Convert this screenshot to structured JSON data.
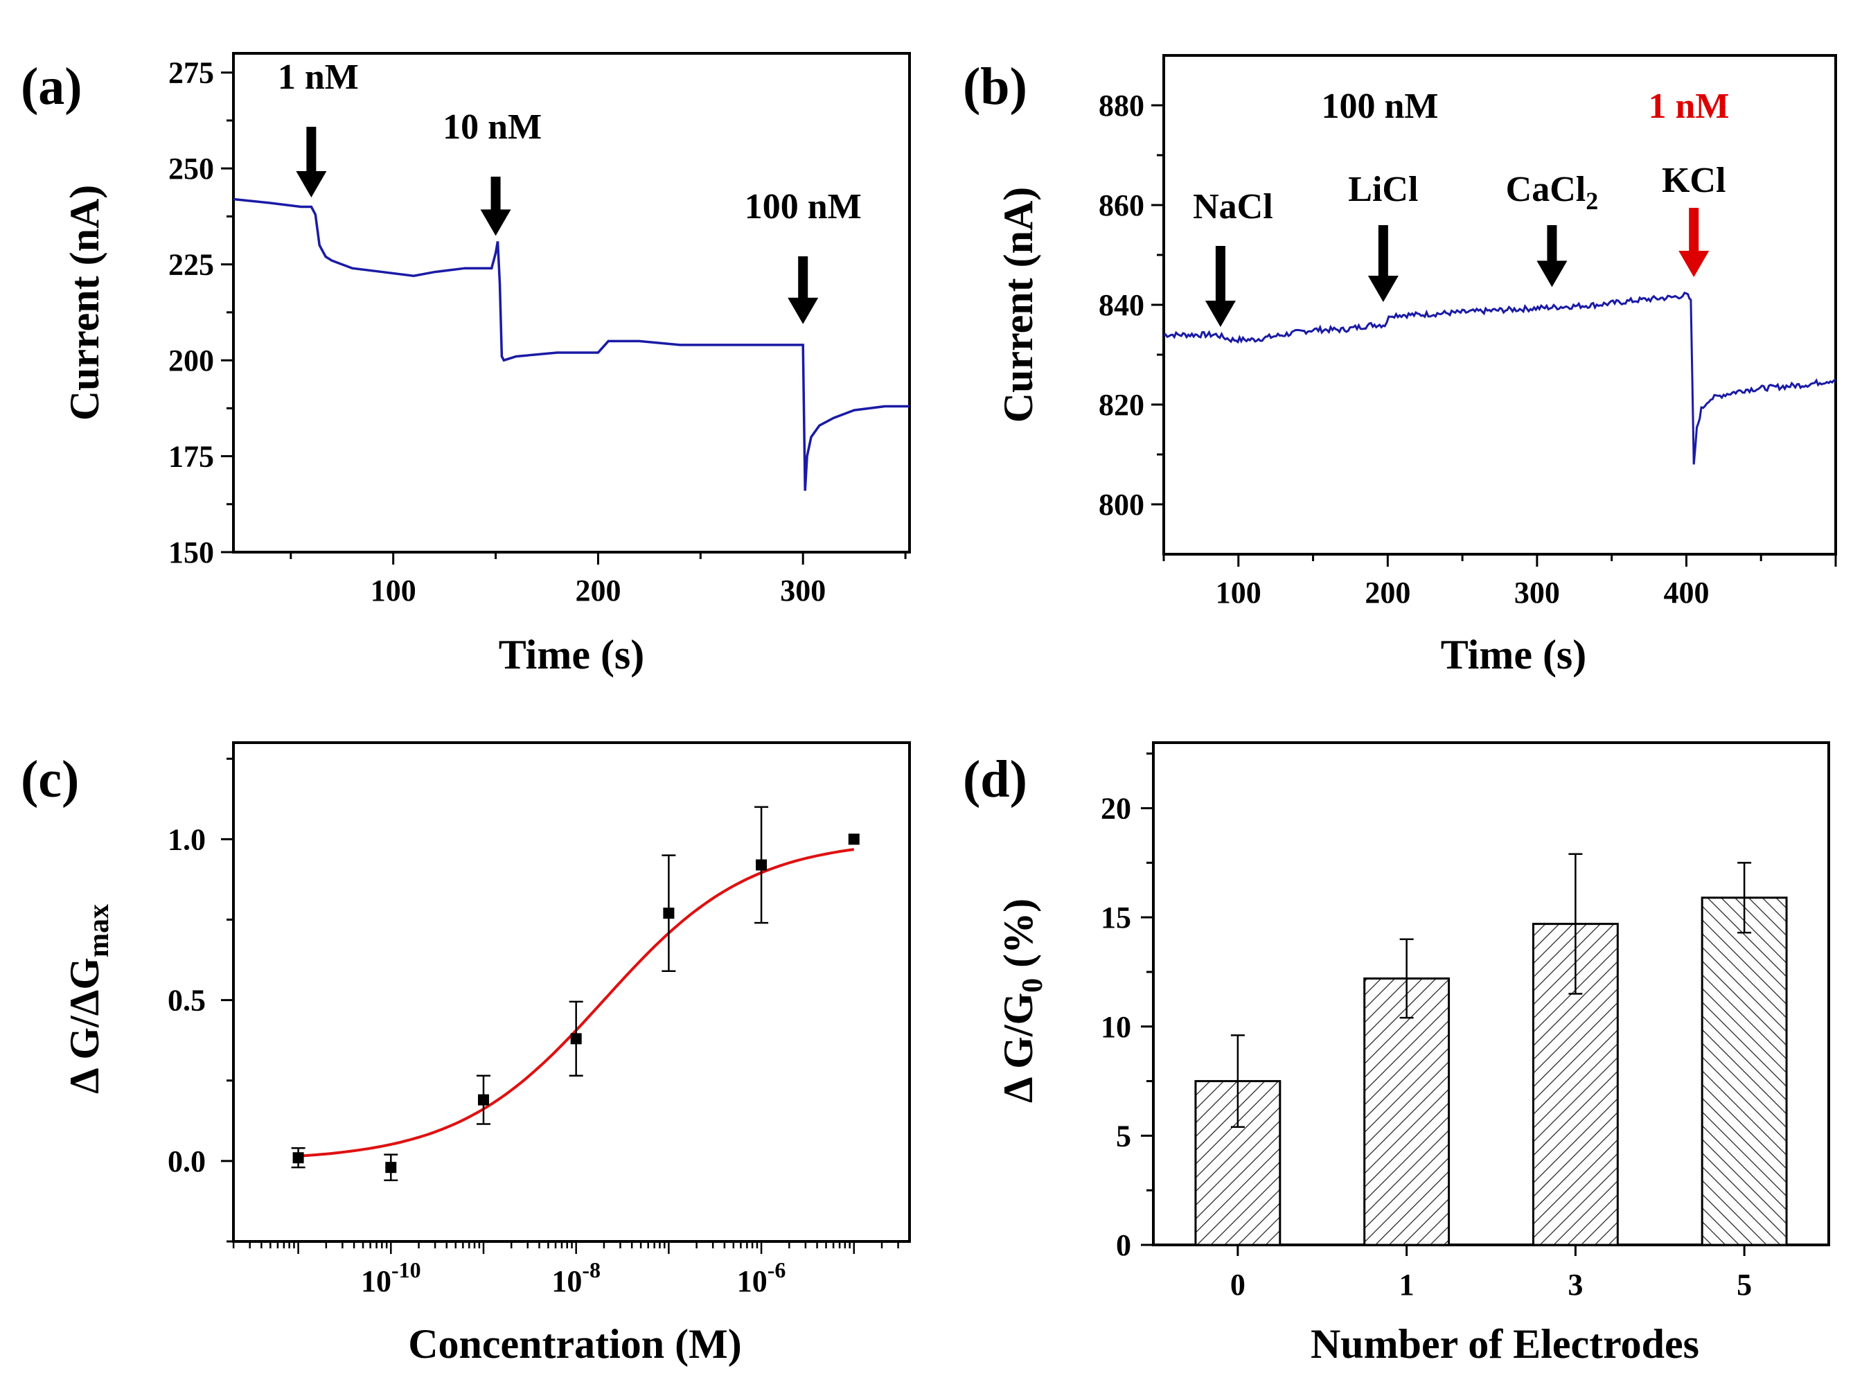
{
  "chart_data": [
    {
      "panel": "(a)",
      "type": "line",
      "xlabel": "Time (s)",
      "ylabel": "Current (nA)",
      "xlim": [
        22,
        352
      ],
      "ylim": [
        150,
        280
      ],
      "xticks": [
        100,
        200,
        300
      ],
      "yticks": [
        150,
        175,
        200,
        225,
        250,
        275
      ],
      "series": [
        {
          "name": "current",
          "color": "#1a1aa6",
          "x": [
            22,
            40,
            55,
            60,
            62,
            64,
            67,
            70,
            80,
            95,
            110,
            120,
            135,
            148,
            150,
            151,
            152,
            153,
            154,
            160,
            180,
            200,
            205,
            220,
            240,
            260,
            280,
            298,
            300,
            301,
            302,
            304,
            308,
            315,
            325,
            340,
            352
          ],
          "y": [
            242,
            241,
            240,
            240,
            238,
            230,
            227,
            226,
            224,
            223,
            222,
            223,
            224,
            224,
            228,
            231,
            220,
            201,
            200,
            201,
            202,
            202,
            205,
            205,
            204,
            204,
            204,
            204,
            204,
            166,
            175,
            180,
            183,
            185,
            187,
            188,
            188
          ]
        }
      ],
      "annotations": [
        {
          "text": "1 nM",
          "x": 60,
          "arrow_to_y": 241
        },
        {
          "text": "10 nM",
          "x": 150,
          "arrow_to_y": 231
        },
        {
          "text": "100 nM",
          "x": 300,
          "arrow_to_y": 208
        }
      ],
      "arrow_colors": [
        "#000000",
        "#000000",
        "#000000"
      ]
    },
    {
      "panel": "(b)",
      "type": "line",
      "xlabel": "Time (s)",
      "ylabel": "Current (nA)",
      "xlim": [
        50,
        500
      ],
      "ylim": [
        790,
        890
      ],
      "xticks": [
        100,
        200,
        300,
        400
      ],
      "yticks": [
        800,
        820,
        840,
        860,
        880
      ],
      "series": [
        {
          "name": "current",
          "color": "#1a1aa6",
          "x": [
            50,
            70,
            85,
            90,
            95,
            110,
            130,
            150,
            170,
            190,
            198,
            202,
            220,
            250,
            280,
            310,
            340,
            370,
            390,
            400,
            403,
            405,
            407,
            410,
            415,
            425,
            440,
            460,
            480,
            500
          ],
          "y": [
            834,
            834,
            834,
            833.5,
            833,
            833,
            834,
            835,
            835,
            836,
            836,
            838,
            838,
            838.5,
            839,
            839.5,
            840,
            841,
            841.5,
            842,
            841,
            808,
            815,
            819,
            821,
            822,
            823,
            823.5,
            824,
            825
          ]
        }
      ],
      "annotations": [
        {
          "text": "NaCl",
          "x": 88,
          "arrow_to_y": 835
        },
        {
          "text": "LiCl",
          "x": 197,
          "arrow_to_y": 840
        },
        {
          "text": "CaCl",
          "sub": "2",
          "x": 310,
          "arrow_to_y": 843
        },
        {
          "text": "KCl",
          "x": 405,
          "arrow_to_y": 845
        }
      ],
      "arrow_colors": [
        "#000000",
        "#000000",
        "#000000",
        "#dd0000"
      ],
      "group_labels": [
        "100 nM",
        "1 nM"
      ],
      "group_label_colors": [
        "#000000",
        "#dd0000"
      ]
    },
    {
      "panel": "(c)",
      "type": "scatter",
      "xscale": "log",
      "xlabel": "Concentration (M)",
      "ylabel": "Δ G/ΔG",
      "ylabel_sub": "max",
      "xlim_log10": [
        -11.7,
        -4.4
      ],
      "ylim": [
        -0.25,
        1.3
      ],
      "xticks_log10": [
        -10,
        -8,
        -6
      ],
      "xtick_labels": [
        {
          "base": "10",
          "exp": "-10"
        },
        {
          "base": "10",
          "exp": "-8"
        },
        {
          "base": "10",
          "exp": "-6"
        }
      ],
      "yticks": [
        0.0,
        0.5,
        1.0
      ],
      "ytick_labels": [
        "0.0",
        "0.5",
        "1.0"
      ],
      "points": {
        "x_log10": [
          -11,
          -10,
          -9,
          -8,
          -7,
          -6,
          -5
        ],
        "y": [
          0.01,
          -0.02,
          0.19,
          0.38,
          0.77,
          0.92,
          1.0
        ],
        "err": [
          0.03,
          0.04,
          0.075,
          0.115,
          0.18,
          0.18,
          0.0
        ]
      },
      "fit": {
        "type": "sigmoid",
        "color": "#e01010",
        "bottom": 0.0,
        "top": 1.0,
        "log_ec50": -7.7,
        "slope": 0.55,
        "from_log10": -11,
        "to_log10": -5
      }
    },
    {
      "panel": "(d)",
      "type": "bar",
      "xlabel": "Number of Electrodes",
      "ylabel": "Δ G/G",
      "ylabel_sub": "0",
      "ylabel_suffix": " (%)",
      "categories": [
        "0",
        "1",
        "3",
        "5"
      ],
      "values": [
        7.5,
        12.2,
        14.7,
        15.9
      ],
      "err": [
        2.1,
        1.8,
        3.2,
        1.6
      ],
      "ylim": [
        0,
        23
      ],
      "yticks": [
        0,
        5,
        10,
        15,
        20
      ],
      "hatch": [
        "forward",
        "forward",
        "forward",
        "backward"
      ]
    }
  ]
}
